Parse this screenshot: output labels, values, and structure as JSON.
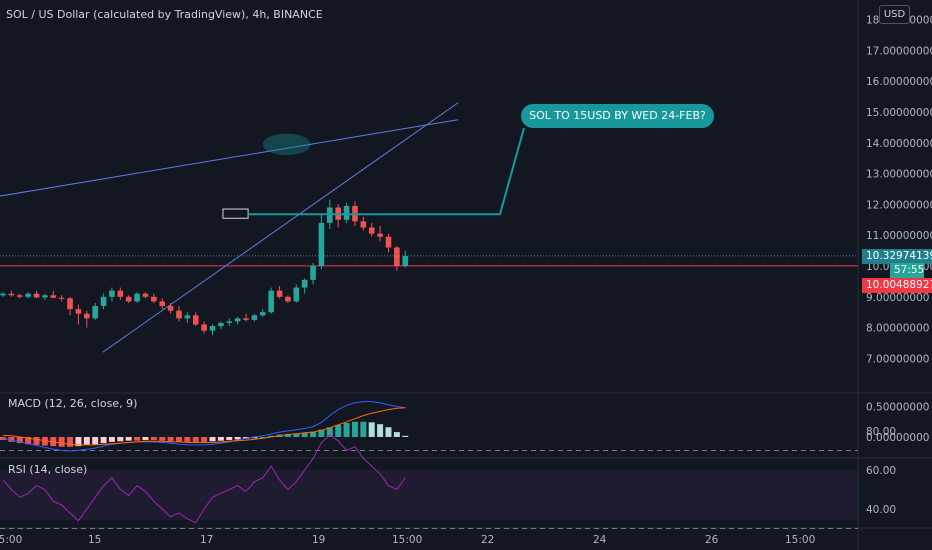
{
  "header": {
    "symbol_title": "SOL / US Dollar (calculated by TradingView), 4h, BINANCE",
    "currency_button": "USD"
  },
  "annotation": {
    "callout_text": "SOL TO 15USD BY WED 24-FEB?"
  },
  "price_axis": {
    "ticks": [
      "18.00000000",
      "17.00000000",
      "16.00000000",
      "15.00000000",
      "14.00000000",
      "13.00000000",
      "12.00000000",
      "11.00000000",
      "10.00000000",
      "9.00000000",
      "8.00000000",
      "7.00000000"
    ],
    "last_price_label": "10.32974139",
    "countdown_label": "57:55",
    "red_line_label": "10.00488927"
  },
  "macd_pane": {
    "label": "MACD (12, 26, close, 9)",
    "ticks": [
      "0.50000000",
      "0.00000000"
    ]
  },
  "rsi_pane": {
    "label": "RSI (14, close)",
    "ticks": [
      "80.00",
      "60.00",
      "40.00"
    ]
  },
  "time_axis": {
    "ticks": [
      "15:00",
      "15",
      "17",
      "19",
      "15:00",
      "22",
      "24",
      "26",
      "15:00"
    ]
  },
  "colors": {
    "background": "#131722",
    "up_candle": "#26a69a",
    "down_candle": "#ef5350",
    "trendline": "#5b7ede",
    "callout": "#17989c",
    "red_line": "#f23645",
    "macd_line": "#2962ff",
    "signal_line": "#ff6d00",
    "rsi_line": "#9c27b0"
  },
  "chart_data": {
    "type": "candlestick",
    "timeframe": "4h",
    "ylim": [
      6.6,
      18.2
    ],
    "candles": [
      [
        9.05,
        9.15,
        9.0,
        9.1
      ],
      [
        9.1,
        9.2,
        9.0,
        9.05
      ],
      [
        9.05,
        9.1,
        8.95,
        9.0
      ],
      [
        9.0,
        9.15,
        8.95,
        9.1
      ],
      [
        9.1,
        9.2,
        8.95,
        8.98
      ],
      [
        8.98,
        9.1,
        8.9,
        9.05
      ],
      [
        9.05,
        9.2,
        8.95,
        8.97
      ],
      [
        8.97,
        9.05,
        8.85,
        8.95
      ],
      [
        8.95,
        9.0,
        8.4,
        8.6
      ],
      [
        8.6,
        8.75,
        8.1,
        8.45
      ],
      [
        8.45,
        8.55,
        8.0,
        8.3
      ],
      [
        8.3,
        8.8,
        8.25,
        8.7
      ],
      [
        8.7,
        9.1,
        8.6,
        9.0
      ],
      [
        9.0,
        9.3,
        8.85,
        9.2
      ],
      [
        9.2,
        9.3,
        8.9,
        9.0
      ],
      [
        9.0,
        9.05,
        8.8,
        8.85
      ],
      [
        8.85,
        9.15,
        8.8,
        9.1
      ],
      [
        9.1,
        9.15,
        8.95,
        9.0
      ],
      [
        9.0,
        9.1,
        8.8,
        8.85
      ],
      [
        8.85,
        8.95,
        8.6,
        8.7
      ],
      [
        8.7,
        8.8,
        8.45,
        8.55
      ],
      [
        8.55,
        8.7,
        8.2,
        8.3
      ],
      [
        8.3,
        8.5,
        8.15,
        8.4
      ],
      [
        8.4,
        8.5,
        8.05,
        8.1
      ],
      [
        8.1,
        8.2,
        7.8,
        7.9
      ],
      [
        7.9,
        8.1,
        7.75,
        8.05
      ],
      [
        8.05,
        8.2,
        7.95,
        8.15
      ],
      [
        8.15,
        8.3,
        8.05,
        8.2
      ],
      [
        8.2,
        8.35,
        8.1,
        8.3
      ],
      [
        8.3,
        8.45,
        8.2,
        8.25
      ],
      [
        8.25,
        8.45,
        8.2,
        8.4
      ],
      [
        8.4,
        8.6,
        8.35,
        8.5
      ],
      [
        8.5,
        9.3,
        8.45,
        9.2
      ],
      [
        9.2,
        9.35,
        8.95,
        9.0
      ],
      [
        9.0,
        9.05,
        8.8,
        8.85
      ],
      [
        8.85,
        9.4,
        8.8,
        9.3
      ],
      [
        9.3,
        9.6,
        9.1,
        9.55
      ],
      [
        9.55,
        10.1,
        9.4,
        10.0
      ],
      [
        10.0,
        11.7,
        9.9,
        11.4
      ],
      [
        11.4,
        12.15,
        11.2,
        11.9
      ],
      [
        11.9,
        12.0,
        11.25,
        11.5
      ],
      [
        11.5,
        12.05,
        11.4,
        11.95
      ],
      [
        11.95,
        12.1,
        11.3,
        11.45
      ],
      [
        11.45,
        11.6,
        11.15,
        11.25
      ],
      [
        11.25,
        11.4,
        10.95,
        11.05
      ],
      [
        11.05,
        11.3,
        10.8,
        10.95
      ],
      [
        10.95,
        11.05,
        10.45,
        10.6
      ],
      [
        10.6,
        10.65,
        9.85,
        10.0
      ],
      [
        10.0,
        10.5,
        9.95,
        10.33
      ]
    ],
    "macd_histogram": [
      -0.05,
      -0.08,
      -0.1,
      -0.12,
      -0.13,
      -0.14,
      -0.15,
      -0.16,
      -0.16,
      -0.15,
      -0.13,
      -0.12,
      -0.1,
      -0.08,
      -0.07,
      -0.06,
      -0.06,
      -0.05,
      -0.05,
      -0.06,
      -0.07,
      -0.08,
      -0.08,
      -0.08,
      -0.08,
      -0.07,
      -0.06,
      -0.05,
      -0.04,
      -0.03,
      -0.02,
      0.0,
      0.02,
      0.04,
      0.05,
      0.06,
      0.07,
      0.09,
      0.12,
      0.16,
      0.2,
      0.23,
      0.25,
      0.25,
      0.24,
      0.21,
      0.16,
      0.08,
      0.02
    ],
    "macd_line": [
      -0.02,
      -0.05,
      -0.08,
      -0.11,
      -0.14,
      -0.17,
      -0.2,
      -0.22,
      -0.23,
      -0.22,
      -0.2,
      -0.18,
      -0.15,
      -0.12,
      -0.1,
      -0.09,
      -0.08,
      -0.08,
      -0.08,
      -0.09,
      -0.1,
      -0.12,
      -0.13,
      -0.13,
      -0.13,
      -0.12,
      -0.1,
      -0.08,
      -0.05,
      -0.02,
      0.0,
      0.02,
      0.05,
      0.08,
      0.1,
      0.12,
      0.14,
      0.17,
      0.24,
      0.35,
      0.45,
      0.52,
      0.56,
      0.58,
      0.58,
      0.56,
      0.53,
      0.5,
      0.48
    ],
    "signal_line": [
      0.03,
      0.02,
      0.0,
      -0.02,
      -0.04,
      -0.06,
      -0.08,
      -0.1,
      -0.12,
      -0.13,
      -0.13,
      -0.13,
      -0.12,
      -0.11,
      -0.1,
      -0.09,
      -0.08,
      -0.07,
      -0.07,
      -0.07,
      -0.08,
      -0.08,
      -0.09,
      -0.09,
      -0.09,
      -0.09,
      -0.08,
      -0.07,
      -0.06,
      -0.05,
      -0.04,
      -0.02,
      0.0,
      0.02,
      0.04,
      0.05,
      0.07,
      0.08,
      0.11,
      0.15,
      0.2,
      0.25,
      0.3,
      0.35,
      0.39,
      0.42,
      0.45,
      0.47,
      0.48
    ],
    "rsi": [
      55,
      50,
      46,
      48,
      52,
      50,
      44,
      42,
      38,
      34,
      40,
      46,
      52,
      56,
      50,
      47,
      52,
      49,
      44,
      40,
      36,
      38,
      35,
      33,
      40,
      46,
      48,
      50,
      52,
      49,
      54,
      56,
      62,
      55,
      50,
      54,
      60,
      66,
      74,
      78,
      75,
      70,
      72,
      66,
      62,
      58,
      52,
      50,
      56
    ],
    "rsi_levels": [
      70,
      30
    ],
    "rsi_ylim": [
      24,
      84
    ],
    "macd_ylim": [
      -0.32,
      0.72
    ],
    "trendlines": [
      {
        "name": "upper",
        "p1": [
          -40.5,
          10.45
        ],
        "p2": [
          54.3,
          14.75
        ]
      },
      {
        "name": "lower",
        "p1": [
          11.9,
          7.2
        ],
        "p2": [
          54.3,
          15.3
        ]
      }
    ],
    "red_line_value": 10.00488927,
    "last_price": 10.32974139,
    "target_ellipse": [
      33.85,
      13.95
    ],
    "target_box": [
      [
        26.25,
        11.55
      ],
      [
        29.25,
        11.85
      ]
    ]
  }
}
